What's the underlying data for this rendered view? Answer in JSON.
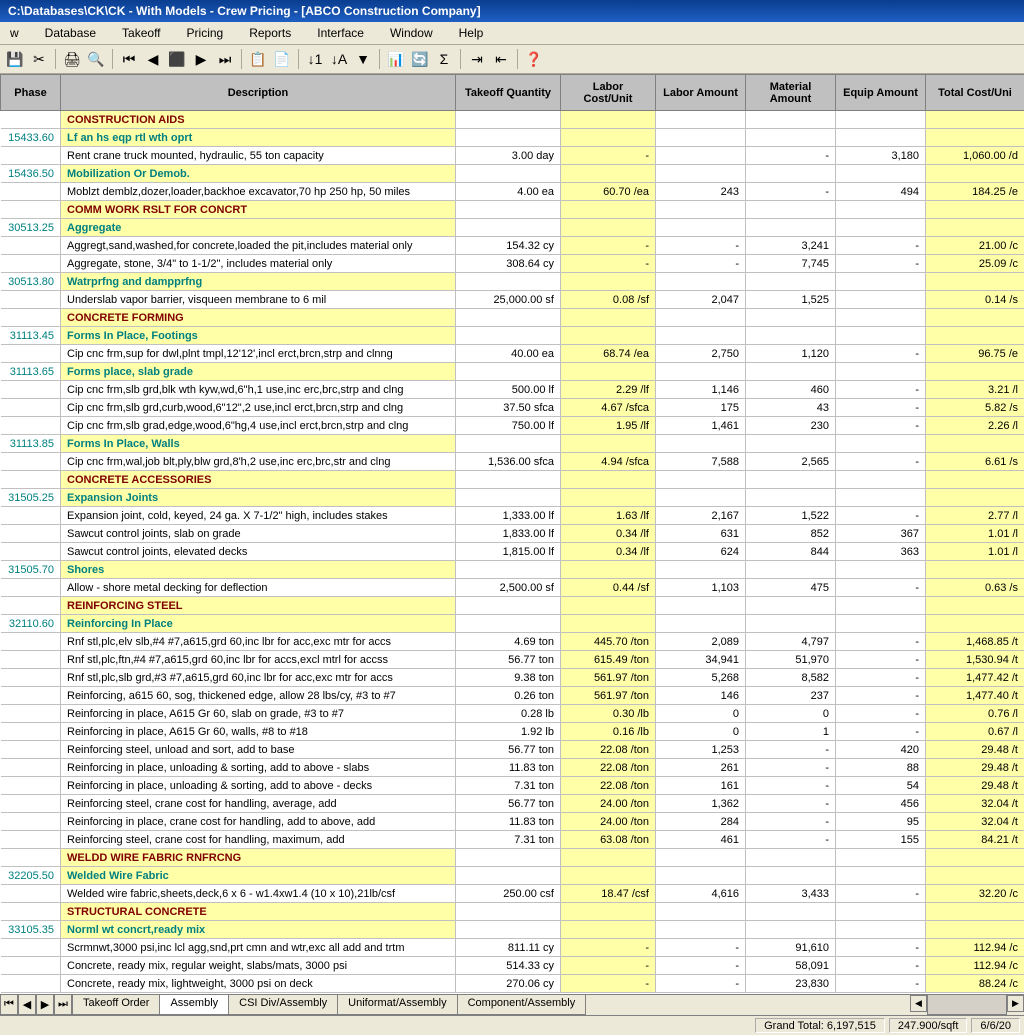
{
  "titlebar": "C:\\Databases\\CK\\CK - With Models - Crew Pricing - [ABCO Construction Company]",
  "menu": [
    "w",
    "Database",
    "Takeoff",
    "Pricing",
    "Reports",
    "Interface",
    "Window",
    "Help"
  ],
  "columns": [
    "Phase",
    "Description",
    "Takeoff Quantity",
    "Labor Cost/Unit",
    "Labor Amount",
    "Material Amount",
    "Equip Amount",
    "Total Cost/Uni"
  ],
  "rows": [
    {
      "type": "section",
      "desc": "CONSTRUCTION AIDS"
    },
    {
      "type": "sub",
      "phase": "15433.60",
      "desc": "Lf an hs eqp rtl wth oprt"
    },
    {
      "type": "item",
      "desc": "Rent crane truck mounted, hydraulic, 55 ton capacity",
      "qty": "3.00  day",
      "lcost": "-",
      "lamt": "",
      "mamt": "-",
      "eamt": "3,180",
      "total": "1,060.00  /d"
    },
    {
      "type": "sub",
      "phase": "15436.50",
      "desc": "Mobilization Or Demob."
    },
    {
      "type": "item",
      "desc": "Moblzt demblz,dozer,loader,backhoe excavator,70 hp 250 hp, 50 miles",
      "qty": "4.00  ea",
      "lcost": "60.70  /ea",
      "lamt": "243",
      "mamt": "-",
      "eamt": "494",
      "total": "184.25  /e"
    },
    {
      "type": "section",
      "desc": "COMM WORK RSLT FOR CONCRT"
    },
    {
      "type": "sub",
      "phase": "30513.25",
      "desc": "Aggregate"
    },
    {
      "type": "item",
      "desc": "Aggregt,sand,washed,for concrete,loaded the pit,includes material only",
      "qty": "154.32  cy",
      "lcost": "-",
      "lamt": "-",
      "mamt": "3,241",
      "eamt": "-",
      "total": "21.00  /c"
    },
    {
      "type": "item",
      "desc": "Aggregate, stone, 3/4\" to 1-1/2\", includes material only",
      "qty": "308.64  cy",
      "lcost": "-",
      "lamt": "-",
      "mamt": "7,745",
      "eamt": "-",
      "total": "25.09  /c"
    },
    {
      "type": "sub",
      "phase": "30513.80",
      "desc": "Watrprfng and dampprfng"
    },
    {
      "type": "item",
      "desc": "Underslab vapor barrier, visqueen membrane to 6 mil",
      "qty": "25,000.00  sf",
      "lcost": "0.08  /sf",
      "lamt": "2,047",
      "mamt": "1,525",
      "eamt": "",
      "total": "0.14  /s"
    },
    {
      "type": "section",
      "desc": "CONCRETE FORMING"
    },
    {
      "type": "sub",
      "phase": "31113.45",
      "desc": "Forms In Place, Footings"
    },
    {
      "type": "item",
      "desc": "Cip cnc frm,sup for dwl,plnt tmpl,12'12',incl erct,brcn,strp and clnng",
      "qty": "40.00  ea",
      "lcost": "68.74  /ea",
      "lamt": "2,750",
      "mamt": "1,120",
      "eamt": "-",
      "total": "96.75  /e"
    },
    {
      "type": "sub",
      "phase": "31113.65",
      "desc": "Forms place, slab grade"
    },
    {
      "type": "item",
      "desc": "Cip cnc frm,slb grd,blk wth kyw,wd,6\"h,1 use,inc erc,brc,strp and clng",
      "qty": "500.00  lf",
      "lcost": "2.29  /lf",
      "lamt": "1,146",
      "mamt": "460",
      "eamt": "-",
      "total": "3.21  /l"
    },
    {
      "type": "item",
      "desc": "Cip cnc frm,slb grd,curb,wood,6\"12\",2 use,incl erct,brcn,strp and clng",
      "qty": "37.50  sfca",
      "lcost": "4.67  /sfca",
      "lamt": "175",
      "mamt": "43",
      "eamt": "-",
      "total": "5.82  /s"
    },
    {
      "type": "item",
      "desc": "Cip cnc frm,slb grad,edge,wood,6\"hg,4 use,incl erct,brcn,strp and clng",
      "qty": "750.00  lf",
      "lcost": "1.95  /lf",
      "lamt": "1,461",
      "mamt": "230",
      "eamt": "-",
      "total": "2.26  /l"
    },
    {
      "type": "sub",
      "phase": "31113.85",
      "desc": "Forms In Place, Walls"
    },
    {
      "type": "item",
      "desc": "Cip cnc frm,wal,job blt,ply,blw grd,8'h,2 use,inc erc,brc,str and clng",
      "qty": "1,536.00  sfca",
      "lcost": "4.94  /sfca",
      "lamt": "7,588",
      "mamt": "2,565",
      "eamt": "-",
      "total": "6.61  /s"
    },
    {
      "type": "section",
      "desc": "CONCRETE ACCESSORIES"
    },
    {
      "type": "sub",
      "phase": "31505.25",
      "desc": "Expansion Joints"
    },
    {
      "type": "item",
      "desc": "Expansion joint, cold, keyed, 24 ga. X 7-1/2\" high, includes stakes",
      "qty": "1,333.00  lf",
      "lcost": "1.63  /lf",
      "lamt": "2,167",
      "mamt": "1,522",
      "eamt": "-",
      "total": "2.77  /l"
    },
    {
      "type": "item",
      "desc": "Sawcut control joints, slab on grade",
      "qty": "1,833.00  lf",
      "lcost": "0.34  /lf",
      "lamt": "631",
      "mamt": "852",
      "eamt": "367",
      "total": "1.01  /l"
    },
    {
      "type": "item",
      "desc": "Sawcut control joints, elevated decks",
      "qty": "1,815.00  lf",
      "lcost": "0.34  /lf",
      "lamt": "624",
      "mamt": "844",
      "eamt": "363",
      "total": "1.01  /l"
    },
    {
      "type": "sub",
      "phase": "31505.70",
      "desc": "Shores"
    },
    {
      "type": "item",
      "desc": "Allow - shore metal decking for deflection",
      "qty": "2,500.00  sf",
      "lcost": "0.44  /sf",
      "lamt": "1,103",
      "mamt": "475",
      "eamt": "-",
      "total": "0.63  /s"
    },
    {
      "type": "section",
      "desc": "REINFORCING STEEL"
    },
    {
      "type": "sub",
      "phase": "32110.60",
      "desc": "Reinforcing In Place"
    },
    {
      "type": "item",
      "desc": "Rnf stl,plc,elv slb,#4 #7,a615,grd 60,inc lbr for acc,exc mtr for accs",
      "qty": "4.69  ton",
      "lcost": "445.70  /ton",
      "lamt": "2,089",
      "mamt": "4,797",
      "eamt": "-",
      "total": "1,468.85  /t"
    },
    {
      "type": "item",
      "desc": "Rnf stl,plc,ftn,#4 #7,a615,grd 60,inc lbr for accs,excl mtrl for accss",
      "qty": "56.77  ton",
      "lcost": "615.49  /ton",
      "lamt": "34,941",
      "mamt": "51,970",
      "eamt": "-",
      "total": "1,530.94  /t"
    },
    {
      "type": "item",
      "desc": "Rnf stl,plc,slb grd,#3 #7,a615,grd 60,inc lbr for acc,exc mtr for accs",
      "qty": "9.38  ton",
      "lcost": "561.97  /ton",
      "lamt": "5,268",
      "mamt": "8,582",
      "eamt": "-",
      "total": "1,477.42  /t"
    },
    {
      "type": "item",
      "desc": "Reinforcing, a615 60, sog, thickened edge, allow 28 lbs/cy, #3 to #7",
      "qty": "0.26  ton",
      "lcost": "561.97  /ton",
      "lamt": "146",
      "mamt": "237",
      "eamt": "-",
      "total": "1,477.40  /t"
    },
    {
      "type": "item",
      "desc": "Reinforcing in place, A615 Gr 60, slab on grade, #3 to #7",
      "qty": "0.28  lb",
      "lcost": "0.30  /lb",
      "lamt": "0",
      "mamt": "0",
      "eamt": "-",
      "total": "0.76  /l"
    },
    {
      "type": "item",
      "desc": "Reinforcing in place, A615 Gr 60, walls, #8 to #18",
      "qty": "1.92  lb",
      "lcost": "0.16  /lb",
      "lamt": "0",
      "mamt": "1",
      "eamt": "-",
      "total": "0.67  /l"
    },
    {
      "type": "item",
      "desc": "Reinforcing steel, unload and sort, add to base",
      "qty": "56.77  ton",
      "lcost": "22.08  /ton",
      "lamt": "1,253",
      "mamt": "-",
      "eamt": "420",
      "total": "29.48  /t"
    },
    {
      "type": "item",
      "desc": "Reinforcing in place, unloading & sorting, add to above - slabs",
      "qty": "11.83  ton",
      "lcost": "22.08  /ton",
      "lamt": "261",
      "mamt": "-",
      "eamt": "88",
      "total": "29.48  /t"
    },
    {
      "type": "item",
      "desc": "Reinforcing in place, unloading & sorting, add to above - decks",
      "qty": "7.31  ton",
      "lcost": "22.08  /ton",
      "lamt": "161",
      "mamt": "-",
      "eamt": "54",
      "total": "29.48  /t"
    },
    {
      "type": "item",
      "desc": "Reinforcing steel, crane cost for handling, average, add",
      "qty": "56.77  ton",
      "lcost": "24.00  /ton",
      "lamt": "1,362",
      "mamt": "-",
      "eamt": "456",
      "total": "32.04  /t"
    },
    {
      "type": "item",
      "desc": "Reinforcing in place, crane cost for handling, add to above, add",
      "qty": "11.83  ton",
      "lcost": "24.00  /ton",
      "lamt": "284",
      "mamt": "-",
      "eamt": "95",
      "total": "32.04  /t"
    },
    {
      "type": "item",
      "desc": "Reinforcing steel, crane cost for handling, maximum, add",
      "qty": "7.31  ton",
      "lcost": "63.08  /ton",
      "lamt": "461",
      "mamt": "-",
      "eamt": "155",
      "total": "84.21  /t"
    },
    {
      "type": "section",
      "desc": "WELDD WIRE FABRIC RNFRCNG"
    },
    {
      "type": "sub",
      "phase": "32205.50",
      "desc": "Welded Wire Fabric"
    },
    {
      "type": "item",
      "desc": "Welded wire fabric,sheets,deck,6 x 6 - w1.4xw1.4 (10 x 10),21lb/csf",
      "qty": "250.00  csf",
      "lcost": "18.47  /csf",
      "lamt": "4,616",
      "mamt": "3,433",
      "eamt": "-",
      "total": "32.20  /c"
    },
    {
      "type": "section",
      "desc": "STRUCTURAL CONCRETE"
    },
    {
      "type": "sub",
      "phase": "33105.35",
      "desc": "Norml wt concrt,ready mix"
    },
    {
      "type": "item",
      "desc": "Scrmnwt,3000 psi,inc lcl agg,snd,prt cmn and wtr,exc all add and trtm",
      "qty": "811.11  cy",
      "lcost": "-",
      "lamt": "-",
      "mamt": "91,610",
      "eamt": "-",
      "total": "112.94  /c"
    },
    {
      "type": "item",
      "desc": "Concrete, ready mix, regular weight, slabs/mats, 3000 psi",
      "qty": "514.33  cy",
      "lcost": "-",
      "lamt": "-",
      "mamt": "58,091",
      "eamt": "-",
      "total": "112.94  /c"
    },
    {
      "type": "item",
      "desc": "Concrete, ready mix, lightweight, 3000 psi on deck",
      "qty": "270.06  cy",
      "lcost": "-",
      "lamt": "-",
      "mamt": "23,830",
      "eamt": "-",
      "total": "88.24  /c"
    }
  ],
  "tabs": [
    "Takeoff Order",
    "Assembly",
    "CSI Div/Assembly",
    "Uniformat/Assembly",
    "Component/Assembly"
  ],
  "status": {
    "grand": "Grand Total: 6,197,515",
    "rate": "247.900/sqft",
    "date": "6/6/20"
  }
}
